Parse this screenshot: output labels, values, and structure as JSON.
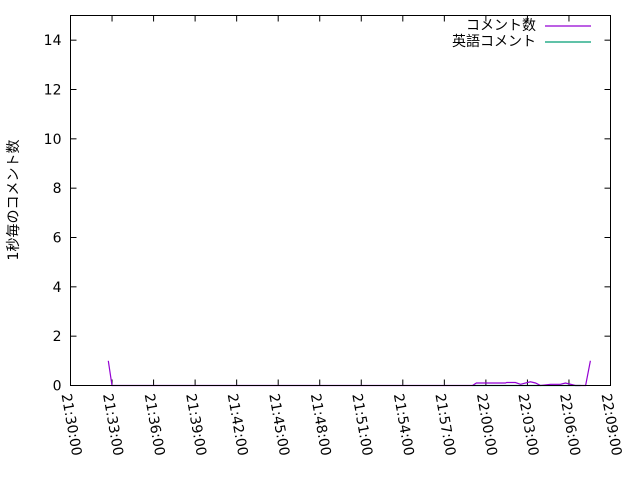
{
  "chart_data": {
    "type": "line",
    "title": "",
    "xlabel": "",
    "ylabel": "1秒毎のコメント数",
    "xlim": [
      "21:30:00",
      "22:09:00"
    ],
    "ylim": [
      0,
      15
    ],
    "grid": false,
    "legend_position": "top-right",
    "x_ticks": [
      "21:30:00",
      "21:33:00",
      "21:36:00",
      "21:39:00",
      "21:42:00",
      "21:45:00",
      "21:48:00",
      "21:51:00",
      "21:54:00",
      "21:57:00",
      "22:00:00",
      "22:03:00",
      "22:06:00",
      "22:09:00"
    ],
    "y_ticks": [
      0,
      2,
      4,
      6,
      8,
      10,
      12,
      14
    ],
    "series": [
      {
        "name": "コメント数",
        "color": "#9400d3",
        "points": [
          [
            "21:32:44",
            1
          ],
          [
            "21:33:00",
            0
          ],
          [
            "21:59:02",
            0
          ],
          [
            "21:59:19",
            0.1
          ],
          [
            "22:01:25",
            0.1
          ],
          [
            "22:01:30",
            0.12
          ],
          [
            "22:02:08",
            0.12
          ],
          [
            "22:02:30",
            0.05
          ],
          [
            "22:03:13",
            0.15
          ],
          [
            "22:03:35",
            0.1
          ],
          [
            "22:03:57",
            0
          ],
          [
            "22:04:40",
            0.05
          ],
          [
            "22:05:23",
            0.05
          ],
          [
            "22:05:45",
            0.1
          ],
          [
            "22:06:28",
            0
          ],
          [
            "22:07:12",
            0
          ],
          [
            "22:07:33",
            1
          ]
        ]
      },
      {
        "name": "英語コメント",
        "color": "#009e73",
        "points": [
          [
            "21:59:02",
            0
          ],
          [
            "21:59:40",
            0
          ],
          [
            "22:06:10",
            0
          ],
          [
            "22:06:50",
            0
          ]
        ]
      }
    ]
  }
}
